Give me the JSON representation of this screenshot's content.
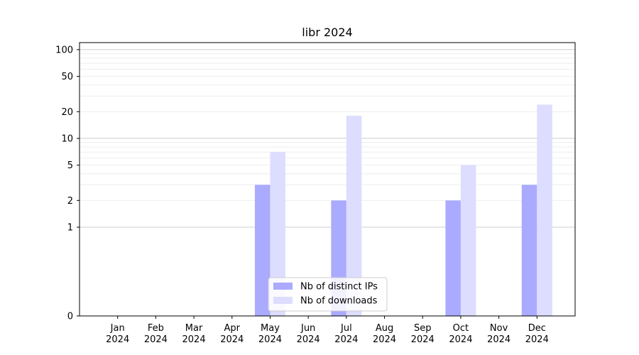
{
  "chart_data": {
    "type": "bar",
    "title": "libr 2024",
    "xlabel": "",
    "ylabel": "",
    "y_scale": "symlog",
    "ylim": [
      0,
      120
    ],
    "y_ticks": [
      "0",
      "1",
      "2",
      "5",
      "10",
      "20",
      "50",
      "100"
    ],
    "categories": [
      {
        "month": "Jan",
        "year": "2024"
      },
      {
        "month": "Feb",
        "year": "2024"
      },
      {
        "month": "Mar",
        "year": "2024"
      },
      {
        "month": "Apr",
        "year": "2024"
      },
      {
        "month": "May",
        "year": "2024"
      },
      {
        "month": "Jun",
        "year": "2024"
      },
      {
        "month": "Jul",
        "year": "2024"
      },
      {
        "month": "Aug",
        "year": "2024"
      },
      {
        "month": "Sep",
        "year": "2024"
      },
      {
        "month": "Oct",
        "year": "2024"
      },
      {
        "month": "Nov",
        "year": "2024"
      },
      {
        "month": "Dec",
        "year": "2024"
      }
    ],
    "series": [
      {
        "name": "Nb of distinct IPs",
        "color": "#aaaaff",
        "values": [
          0,
          0,
          0,
          0,
          3,
          0,
          2,
          0,
          0,
          2,
          0,
          3
        ]
      },
      {
        "name": "Nb of downloads",
        "color": "#ddddff",
        "values": [
          0,
          0,
          0,
          0,
          7,
          0,
          18,
          0,
          0,
          5,
          0,
          24
        ]
      }
    ],
    "grid": true,
    "legend_position": "bottom-center"
  }
}
